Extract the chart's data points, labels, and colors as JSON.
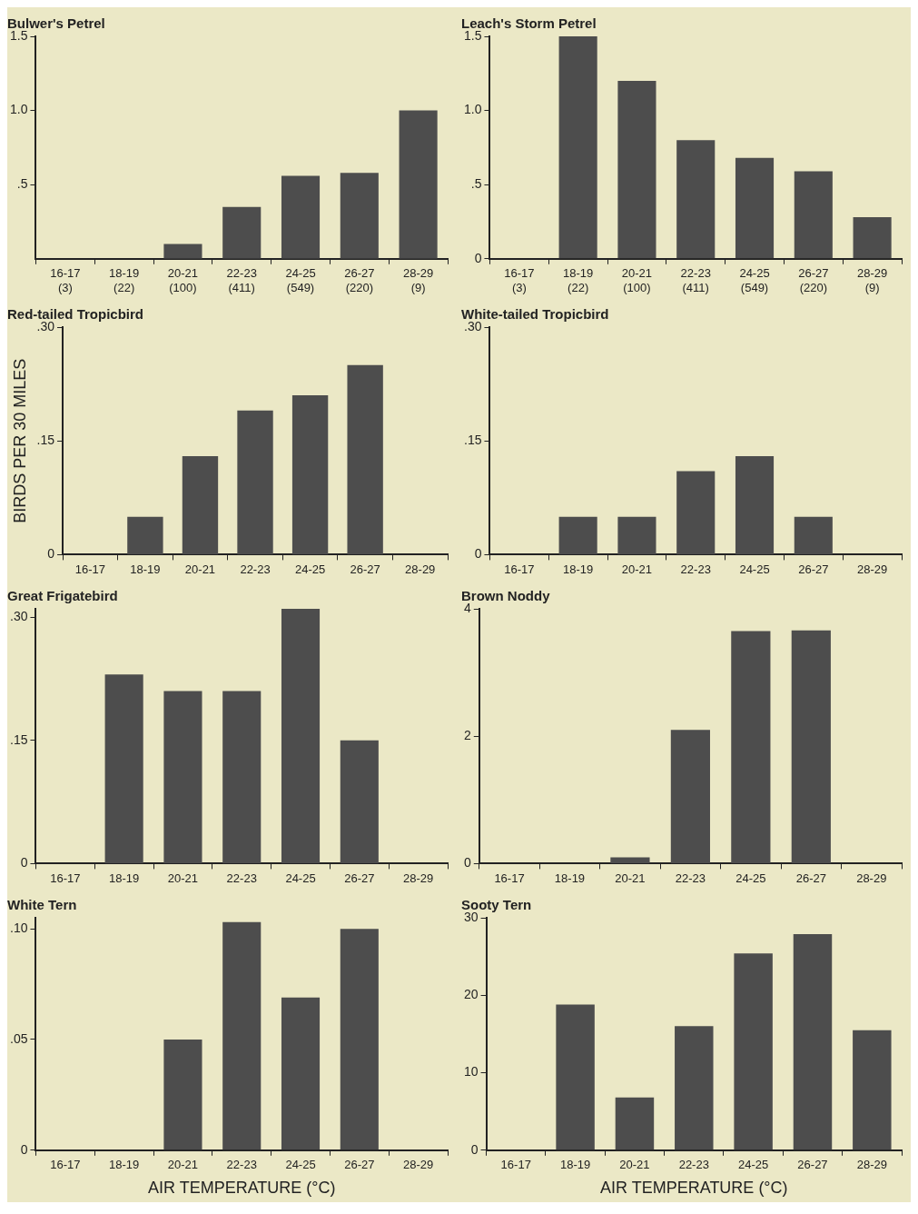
{
  "chart_data": [
    {
      "type": "bar",
      "title": "Bulwer's Petrel",
      "categories": [
        "16-17\n(3)",
        "18-19\n(22)",
        "20-21\n(100)",
        "22-23\n(411)",
        "24-25\n(549)",
        "26-27\n(220)",
        "28-29\n(9)"
      ],
      "values": [
        0,
        0,
        0.1,
        0.35,
        0.56,
        0.58,
        1.0
      ],
      "color": "#4d4d4d",
      "ylim": [
        0,
        1.5
      ],
      "yticks": [
        {
          "value": 0.5,
          "label": ".5"
        },
        {
          "value": 1.0,
          "label": "1.0"
        },
        {
          "value": 1.5,
          "label": "1.5"
        }
      ],
      "legend": false
    },
    {
      "type": "bar",
      "title": "Leach's Storm Petrel",
      "categories": [
        "16-17\n(3)",
        "18-19\n(22)",
        "20-21\n(100)",
        "22-23\n(411)",
        "24-25\n(549)",
        "26-27\n(220)",
        "28-29\n(9)"
      ],
      "values": [
        0,
        1.5,
        1.2,
        0.8,
        0.68,
        0.59,
        0.28
      ],
      "color": "#4d4d4d",
      "ylim": [
        0,
        1.5
      ],
      "yticks": [
        0,
        {
          "value": 0.5,
          "label": ".5"
        },
        {
          "value": 1.0,
          "label": "1.0"
        },
        {
          "value": 1.5,
          "label": "1.5"
        }
      ],
      "legend": false
    },
    {
      "type": "bar",
      "title": "Red-tailed Tropicbird",
      "ylabel": "BIRDS PER 30 MILES",
      "categories": [
        "16-17",
        "18-19",
        "20-21",
        "22-23",
        "24-25",
        "26-27",
        "28-29"
      ],
      "values": [
        0,
        0.05,
        0.13,
        0.19,
        0.21,
        0.25,
        0
      ],
      "color": "#4d4d4d",
      "ylim": [
        0,
        0.3
      ],
      "yticks": [
        0,
        {
          "value": 0.15,
          "label": ".15"
        },
        {
          "value": 0.3,
          "label": ".30"
        }
      ],
      "legend": false
    },
    {
      "type": "bar",
      "title": "White-tailed Tropicbird",
      "categories": [
        "16-17",
        "18-19",
        "20-21",
        "22-23",
        "24-25",
        "26-27",
        "28-29"
      ],
      "values": [
        0,
        0.05,
        0.05,
        0.11,
        0.13,
        0.05,
        0
      ],
      "color": "#4d4d4d",
      "ylim": [
        0,
        0.3
      ],
      "yticks": [
        0,
        {
          "value": 0.15,
          "label": ".15"
        },
        {
          "value": 0.3,
          "label": ".30"
        }
      ],
      "legend": false
    },
    {
      "type": "bar",
      "title": "Great Frigatebird",
      "categories": [
        "16-17",
        "18-19",
        "20-21",
        "22-23",
        "24-25",
        "26-27",
        "28-29"
      ],
      "values": [
        0,
        0.23,
        0.21,
        0.21,
        0.31,
        0.15,
        0
      ],
      "color": "#4d4d4d",
      "ylim": [
        0,
        0.31
      ],
      "yticks": [
        0,
        {
          "value": 0.15,
          "label": ".15"
        },
        {
          "value": 0.3,
          "label": ".30"
        }
      ],
      "legend": false
    },
    {
      "type": "bar",
      "title": "Brown Noddy",
      "categories": [
        "16-17",
        "18-19",
        "20-21",
        "22-23",
        "24-25",
        "26-27",
        "28-29"
      ],
      "values": [
        0,
        0,
        0.1,
        2.1,
        3.65,
        3.66,
        0
      ],
      "color": "#4d4d4d",
      "ylim": [
        0,
        4
      ],
      "yticks": [
        0,
        2,
        4
      ],
      "legend": false
    },
    {
      "type": "bar",
      "title": "White Tern",
      "xlabel": "AIR TEMPERATURE (°C)",
      "categories": [
        "16-17",
        "18-19",
        "20-21",
        "22-23",
        "24-25",
        "26-27",
        "28-29"
      ],
      "values": [
        0,
        0,
        0.05,
        0.103,
        0.069,
        0.1,
        0
      ],
      "color": "#4d4d4d",
      "ylim": [
        0,
        0.105
      ],
      "yticks": [
        0,
        {
          "value": 0.05,
          "label": ".05"
        },
        {
          "value": 0.1,
          "label": ".10"
        }
      ],
      "legend": false
    },
    {
      "type": "bar",
      "title": "Sooty Tern",
      "xlabel": "AIR TEMPERATURE (°C)",
      "categories": [
        "16-17",
        "18-19",
        "20-21",
        "22-23",
        "24-25",
        "26-27",
        "28-29"
      ],
      "values": [
        0,
        18.8,
        6.8,
        16,
        25.4,
        27.9,
        15.5
      ],
      "color": "#4d4d4d",
      "ylim": [
        0,
        30
      ],
      "yticks": [
        0,
        10,
        20,
        30
      ],
      "legend": false
    }
  ]
}
